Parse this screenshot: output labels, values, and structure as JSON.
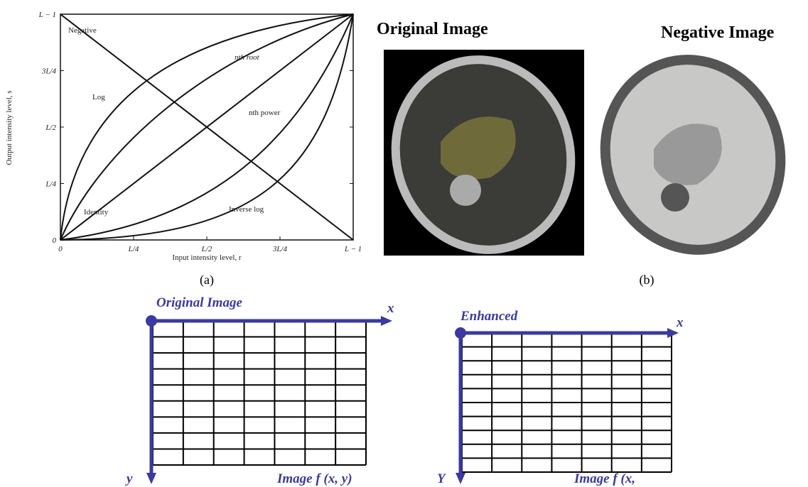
{
  "panel_a": {
    "curve_labels": [
      "Negative",
      "Log",
      "nth root",
      "nth power",
      "Identity",
      "Inverse log"
    ],
    "x_ticks": [
      "0",
      "L/4",
      "L/2",
      "3L/4",
      "L − 1"
    ],
    "y_ticks": [
      "0",
      "L/4",
      "L/2",
      "3L/4",
      "L − 1"
    ],
    "x_label": "Input intensity level, r",
    "y_label": "Output intensity level, s",
    "caption": "(a)"
  },
  "panel_b": {
    "original_title": "Original Image",
    "negative_title": "Negative Image",
    "caption": "(b)"
  },
  "grids": [
    {
      "title": "Original Image",
      "x_axis": "x",
      "y_axis": "y",
      "label": "Image f (x, y)"
    },
    {
      "title": "Enhanced",
      "x_axis": "x",
      "y_axis": "Y",
      "label": "Image f (x,"
    }
  ]
}
